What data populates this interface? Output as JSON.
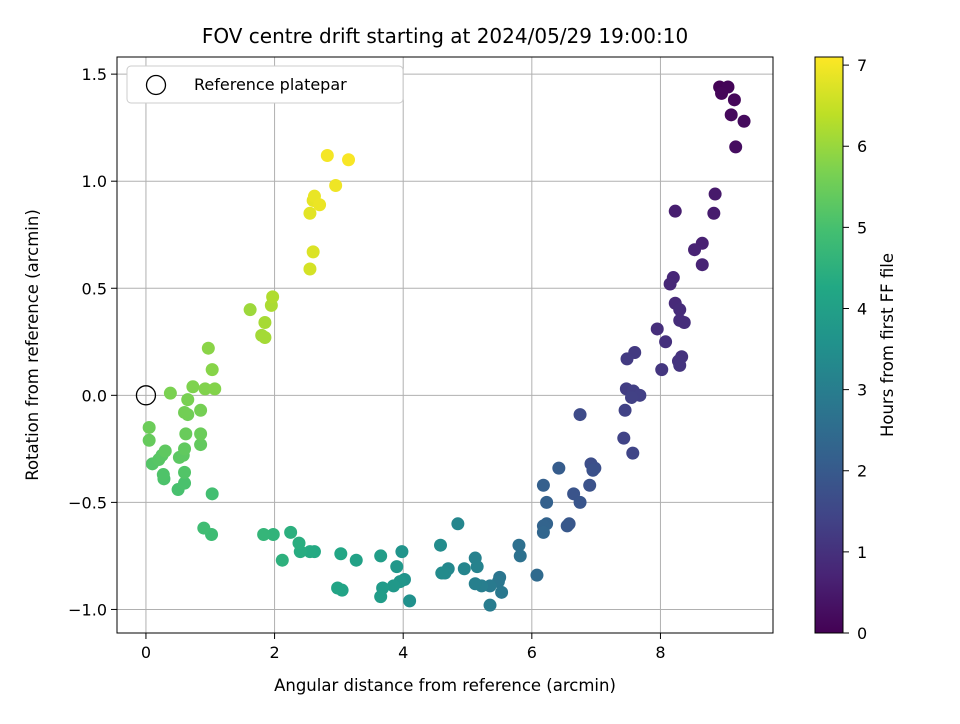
{
  "chart_data": {
    "type": "scatter",
    "title": "FOV centre drift starting at 2024/05/29 19:00:10",
    "xlabel": "Angular distance from reference (arcmin)",
    "ylabel": "Rotation from reference (arcmin)",
    "colorbar_label": "Hours from first FF file",
    "colormap": "viridis",
    "xlim": [
      -0.45,
      9.75
    ],
    "ylim": [
      -1.11,
      1.58
    ],
    "clim": [
      0,
      7.1
    ],
    "x_ticks": [
      0,
      2,
      4,
      6,
      8
    ],
    "x_tick_labels": [
      "0",
      "2",
      "4",
      "6",
      "8"
    ],
    "y_ticks": [
      -1.0,
      -0.5,
      0.0,
      0.5,
      1.0,
      1.5
    ],
    "y_tick_labels": [
      "−1.0",
      "−0.5",
      "0.0",
      "0.5",
      "1.0",
      "1.5"
    ],
    "colorbar_ticks": [
      0,
      1,
      2,
      3,
      4,
      5,
      6,
      7
    ],
    "colorbar_tick_labels": [
      "0",
      "1",
      "2",
      "3",
      "4",
      "5",
      "6",
      "7"
    ],
    "grid": true,
    "legend": {
      "position": "upper-left",
      "entries": [
        {
          "label": "Reference platepar",
          "marker": "open-circle"
        }
      ]
    },
    "reference_point": {
      "x": 0,
      "y": 0
    },
    "points": [
      {
        "x": 8.92,
        "y": 1.44,
        "t": 0.05
      },
      {
        "x": 9.05,
        "y": 1.44,
        "t": 0.08
      },
      {
        "x": 8.95,
        "y": 1.41,
        "t": 0.1
      },
      {
        "x": 9.15,
        "y": 1.38,
        "t": 0.13
      },
      {
        "x": 9.1,
        "y": 1.31,
        "t": 0.17
      },
      {
        "x": 9.3,
        "y": 1.28,
        "t": 0.2
      },
      {
        "x": 9.17,
        "y": 1.16,
        "t": 0.25
      },
      {
        "x": 8.85,
        "y": 0.94,
        "t": 0.5
      },
      {
        "x": 8.83,
        "y": 0.85,
        "t": 0.55
      },
      {
        "x": 8.23,
        "y": 0.86,
        "t": 0.58
      },
      {
        "x": 8.65,
        "y": 0.71,
        "t": 0.65
      },
      {
        "x": 8.53,
        "y": 0.68,
        "t": 0.68
      },
      {
        "x": 8.65,
        "y": 0.61,
        "t": 0.72
      },
      {
        "x": 8.2,
        "y": 0.55,
        "t": 0.78
      },
      {
        "x": 8.15,
        "y": 0.52,
        "t": 0.8
      },
      {
        "x": 8.23,
        "y": 0.43,
        "t": 0.85
      },
      {
        "x": 8.3,
        "y": 0.4,
        "t": 0.88
      },
      {
        "x": 8.3,
        "y": 0.35,
        "t": 0.9
      },
      {
        "x": 8.37,
        "y": 0.34,
        "t": 0.92
      },
      {
        "x": 7.95,
        "y": 0.31,
        "t": 0.95
      },
      {
        "x": 8.08,
        "y": 0.25,
        "t": 0.98
      },
      {
        "x": 8.33,
        "y": 0.18,
        "t": 1.02
      },
      {
        "x": 8.28,
        "y": 0.16,
        "t": 1.05
      },
      {
        "x": 8.3,
        "y": 0.14,
        "t": 1.07
      },
      {
        "x": 8.02,
        "y": 0.12,
        "t": 1.1
      },
      {
        "x": 7.6,
        "y": 0.2,
        "t": 1.2
      },
      {
        "x": 7.48,
        "y": 0.17,
        "t": 1.23
      },
      {
        "x": 7.47,
        "y": 0.03,
        "t": 1.27
      },
      {
        "x": 7.58,
        "y": 0.02,
        "t": 1.3
      },
      {
        "x": 7.68,
        "y": 0.0,
        "t": 1.33
      },
      {
        "x": 7.55,
        "y": -0.01,
        "t": 1.35
      },
      {
        "x": 7.45,
        "y": -0.07,
        "t": 1.38
      },
      {
        "x": 7.43,
        "y": -0.2,
        "t": 1.42
      },
      {
        "x": 7.57,
        "y": -0.27,
        "t": 1.45
      },
      {
        "x": 6.75,
        "y": -0.09,
        "t": 1.6
      },
      {
        "x": 6.92,
        "y": -0.32,
        "t": 1.68
      },
      {
        "x": 6.98,
        "y": -0.34,
        "t": 1.72
      },
      {
        "x": 6.95,
        "y": -0.35,
        "t": 1.75
      },
      {
        "x": 6.9,
        "y": -0.42,
        "t": 1.78
      },
      {
        "x": 6.65,
        "y": -0.46,
        "t": 1.85
      },
      {
        "x": 6.75,
        "y": -0.5,
        "t": 1.88
      },
      {
        "x": 6.58,
        "y": -0.6,
        "t": 1.92
      },
      {
        "x": 6.55,
        "y": -0.61,
        "t": 1.95
      },
      {
        "x": 6.42,
        "y": -0.34,
        "t": 2.05
      },
      {
        "x": 6.18,
        "y": -0.42,
        "t": 2.15
      },
      {
        "x": 6.23,
        "y": -0.5,
        "t": 2.2
      },
      {
        "x": 6.23,
        "y": -0.6,
        "t": 2.25
      },
      {
        "x": 6.18,
        "y": -0.61,
        "t": 2.28
      },
      {
        "x": 6.18,
        "y": -0.64,
        "t": 2.32
      },
      {
        "x": 6.08,
        "y": -0.84,
        "t": 2.45
      },
      {
        "x": 5.8,
        "y": -0.7,
        "t": 2.6
      },
      {
        "x": 5.82,
        "y": -0.75,
        "t": 2.65
      },
      {
        "x": 5.5,
        "y": -0.85,
        "t": 2.75
      },
      {
        "x": 5.48,
        "y": -0.87,
        "t": 2.8
      },
      {
        "x": 5.53,
        "y": -0.92,
        "t": 2.85
      },
      {
        "x": 5.35,
        "y": -0.89,
        "t": 2.9
      },
      {
        "x": 5.35,
        "y": -0.98,
        "t": 2.95
      },
      {
        "x": 5.22,
        "y": -0.89,
        "t": 3.0
      },
      {
        "x": 5.12,
        "y": -0.88,
        "t": 3.05
      },
      {
        "x": 5.12,
        "y": -0.76,
        "t": 3.1
      },
      {
        "x": 5.15,
        "y": -0.8,
        "t": 3.12
      },
      {
        "x": 4.95,
        "y": -0.81,
        "t": 3.2
      },
      {
        "x": 4.85,
        "y": -0.6,
        "t": 3.25
      },
      {
        "x": 4.7,
        "y": -0.81,
        "t": 3.3
      },
      {
        "x": 4.65,
        "y": -0.83,
        "t": 3.35
      },
      {
        "x": 4.6,
        "y": -0.83,
        "t": 3.38
      },
      {
        "x": 4.58,
        "y": -0.7,
        "t": 3.42
      },
      {
        "x": 4.1,
        "y": -0.96,
        "t": 3.55
      },
      {
        "x": 4.02,
        "y": -0.86,
        "t": 3.6
      },
      {
        "x": 3.98,
        "y": -0.73,
        "t": 3.65
      },
      {
        "x": 3.95,
        "y": -0.87,
        "t": 3.7
      },
      {
        "x": 3.9,
        "y": -0.8,
        "t": 3.75
      },
      {
        "x": 3.85,
        "y": -0.89,
        "t": 3.78
      },
      {
        "x": 3.68,
        "y": -0.9,
        "t": 3.85
      },
      {
        "x": 3.65,
        "y": -0.94,
        "t": 3.88
      },
      {
        "x": 3.65,
        "y": -0.75,
        "t": 3.92
      },
      {
        "x": 3.27,
        "y": -0.77,
        "t": 4.05
      },
      {
        "x": 3.05,
        "y": -0.91,
        "t": 4.12
      },
      {
        "x": 2.98,
        "y": -0.9,
        "t": 4.15
      },
      {
        "x": 3.03,
        "y": -0.74,
        "t": 4.2
      },
      {
        "x": 2.62,
        "y": -0.73,
        "t": 4.3
      },
      {
        "x": 2.55,
        "y": -0.73,
        "t": 4.33
      },
      {
        "x": 2.4,
        "y": -0.73,
        "t": 4.38
      },
      {
        "x": 2.38,
        "y": -0.69,
        "t": 4.42
      },
      {
        "x": 2.25,
        "y": -0.64,
        "t": 4.47
      },
      {
        "x": 2.12,
        "y": -0.77,
        "t": 4.52
      },
      {
        "x": 1.98,
        "y": -0.65,
        "t": 4.6
      },
      {
        "x": 1.83,
        "y": -0.65,
        "t": 4.65
      },
      {
        "x": 1.02,
        "y": -0.65,
        "t": 4.85
      },
      {
        "x": 0.9,
        "y": -0.62,
        "t": 4.88
      },
      {
        "x": 1.03,
        "y": -0.46,
        "t": 4.95
      },
      {
        "x": 0.5,
        "y": -0.44,
        "t": 5.02
      },
      {
        "x": 0.6,
        "y": -0.41,
        "t": 5.05
      },
      {
        "x": 0.28,
        "y": -0.39,
        "t": 5.08
      },
      {
        "x": 0.27,
        "y": -0.37,
        "t": 5.12
      },
      {
        "x": 0.6,
        "y": -0.36,
        "t": 5.15
      },
      {
        "x": 0.1,
        "y": -0.32,
        "t": 5.18
      },
      {
        "x": 0.2,
        "y": -0.3,
        "t": 5.22
      },
      {
        "x": 0.25,
        "y": -0.28,
        "t": 5.25
      },
      {
        "x": 0.52,
        "y": -0.29,
        "t": 5.28
      },
      {
        "x": 0.58,
        "y": -0.28,
        "t": 5.3
      },
      {
        "x": 0.3,
        "y": -0.26,
        "t": 5.33
      },
      {
        "x": 0.6,
        "y": -0.25,
        "t": 5.35
      },
      {
        "x": 0.85,
        "y": -0.23,
        "t": 5.38
      },
      {
        "x": 0.05,
        "y": -0.21,
        "t": 5.42
      },
      {
        "x": 0.62,
        "y": -0.18,
        "t": 5.45
      },
      {
        "x": 0.85,
        "y": -0.18,
        "t": 5.48
      },
      {
        "x": 0.05,
        "y": -0.15,
        "t": 5.5
      },
      {
        "x": 0.65,
        "y": -0.09,
        "t": 5.55
      },
      {
        "x": 0.6,
        "y": -0.08,
        "t": 5.58
      },
      {
        "x": 0.85,
        "y": -0.07,
        "t": 5.62
      },
      {
        "x": 0.65,
        "y": -0.02,
        "t": 5.65
      },
      {
        "x": 0.38,
        "y": 0.01,
        "t": 5.68
      },
      {
        "x": 0.73,
        "y": 0.04,
        "t": 5.72
      },
      {
        "x": 0.92,
        "y": 0.03,
        "t": 5.75
      },
      {
        "x": 1.07,
        "y": 0.03,
        "t": 5.78
      },
      {
        "x": 1.03,
        "y": 0.12,
        "t": 5.82
      },
      {
        "x": 0.97,
        "y": 0.22,
        "t": 5.85
      },
      {
        "x": 1.62,
        "y": 0.4,
        "t": 6.05
      },
      {
        "x": 1.8,
        "y": 0.28,
        "t": 6.1
      },
      {
        "x": 1.85,
        "y": 0.27,
        "t": 6.12
      },
      {
        "x": 1.85,
        "y": 0.34,
        "t": 6.15
      },
      {
        "x": 1.95,
        "y": 0.42,
        "t": 6.2
      },
      {
        "x": 1.97,
        "y": 0.46,
        "t": 6.25
      },
      {
        "x": 2.55,
        "y": 0.59,
        "t": 6.65
      },
      {
        "x": 2.6,
        "y": 0.67,
        "t": 6.72
      },
      {
        "x": 2.55,
        "y": 0.85,
        "t": 6.8
      },
      {
        "x": 2.6,
        "y": 0.91,
        "t": 6.85
      },
      {
        "x": 2.62,
        "y": 0.93,
        "t": 6.88
      },
      {
        "x": 2.7,
        "y": 0.89,
        "t": 6.9
      },
      {
        "x": 2.95,
        "y": 0.98,
        "t": 6.95
      },
      {
        "x": 2.82,
        "y": 1.12,
        "t": 7.0
      },
      {
        "x": 3.15,
        "y": 1.1,
        "t": 7.05
      }
    ]
  }
}
